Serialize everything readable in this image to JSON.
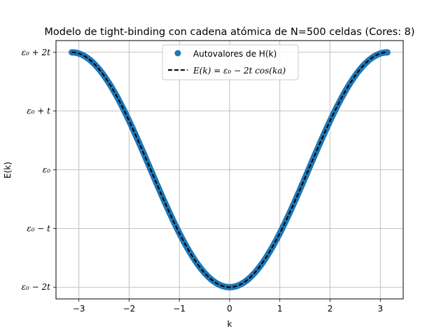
{
  "chart_data": {
    "type": "scatter",
    "title": "Modelo de tight-binding con cadena atómica de N=500 celdas (Cores: 8)",
    "xlabel": "k",
    "ylabel": "E(k)",
    "xlim": [
      -3.4558,
      3.4558
    ],
    "ylim": [
      -2.2,
      2.2
    ],
    "xticks": [
      -3,
      -2,
      -1,
      0,
      1,
      2,
      3
    ],
    "xtick_labels": [
      "−3",
      "−2",
      "−1",
      "0",
      "1",
      "2",
      "3"
    ],
    "yticks": [
      -2,
      -1,
      0,
      1,
      2
    ],
    "ytick_labels": [
      "ε₀ − 2t",
      "ε₀ − t",
      "ε₀",
      "ε₀ + t",
      "ε₀ + 2t"
    ],
    "grid": true,
    "legend_position": "upper center",
    "series": [
      {
        "name": "Autovalores de H(k)",
        "kind": "scatter",
        "color": "#1f77b4",
        "n_points": 500,
        "x_range": [
          -3.1416,
          3.1416
        ],
        "relation": "E = -2 cos(k)"
      },
      {
        "name": "E(k) = ε₀ − 2t cos(ka)",
        "kind": "line",
        "style": "dashed",
        "color": "#000000",
        "x_range": [
          -3.1416,
          3.1416
        ],
        "relation": "E = -2 cos(k)"
      }
    ]
  }
}
